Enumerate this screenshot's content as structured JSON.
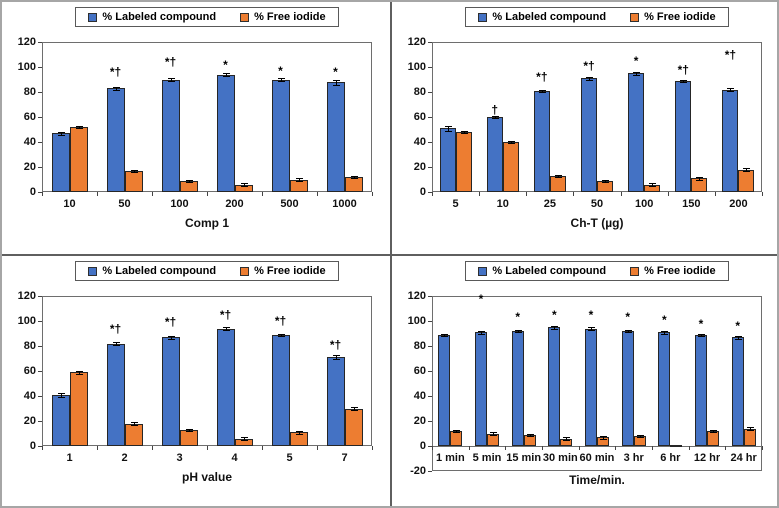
{
  "legend": {
    "items": [
      {
        "label": "% Labeled compound",
        "color": "#4472C4"
      },
      {
        "label": "% Free iodide",
        "color": "#ED7D31"
      }
    ]
  },
  "colors": {
    "labeled_compound": "#4472C4",
    "free_iodide": "#ED7D31",
    "bar_border": "#262626",
    "axis": "#6e6e6e"
  },
  "chart_data": [
    {
      "type": "bar",
      "panel": "top-left",
      "title": "",
      "xlabel": "Comp 1",
      "ylabel": "",
      "ylim": [
        0,
        120
      ],
      "ytick_step": 20,
      "grid": false,
      "legend_position": "top-center",
      "categories": [
        "10",
        "50",
        "100",
        "200",
        "500",
        "1000"
      ],
      "series": [
        {
          "name": "% Labeled compound",
          "color": "#4472C4",
          "values": [
            47,
            83,
            90,
            94,
            90,
            88
          ],
          "errors": [
            1,
            1,
            1,
            1,
            1,
            2
          ]
        },
        {
          "name": "% Free iodide",
          "color": "#ED7D31",
          "values": [
            52,
            17,
            9,
            6,
            10,
            12
          ],
          "errors": [
            1,
            1,
            1,
            1,
            1,
            1
          ]
        }
      ],
      "marks": [
        "",
        "*†",
        "*†",
        "*",
        "*",
        "*"
      ],
      "mark_y": [
        null,
        96,
        104,
        102,
        97,
        96
      ]
    },
    {
      "type": "bar",
      "panel": "top-right",
      "title": "",
      "xlabel": "Ch-T (µg)",
      "ylabel": "",
      "ylim": [
        0,
        120
      ],
      "ytick_step": 20,
      "grid": false,
      "legend_position": "top-center",
      "categories": [
        "5",
        "10",
        "25",
        "50",
        "100",
        "150",
        "200"
      ],
      "series": [
        {
          "name": "% Labeled compound",
          "color": "#4472C4",
          "values": [
            51,
            60,
            81,
            91,
            95,
            89,
            82
          ],
          "errors": [
            2,
            1,
            1,
            1,
            1,
            1,
            1
          ]
        },
        {
          "name": "% Free iodide",
          "color": "#ED7D31",
          "values": [
            48,
            40,
            13,
            9,
            6,
            11,
            18
          ],
          "errors": [
            1,
            1,
            1,
            1,
            1,
            1,
            1
          ]
        }
      ],
      "marks": [
        "",
        "†",
        "*†",
        "*†",
        "*",
        "*†",
        "*†"
      ],
      "mark_y": [
        null,
        66,
        92,
        101,
        105,
        98,
        110
      ]
    },
    {
      "type": "bar",
      "panel": "bottom-left",
      "title": "",
      "xlabel": "pH value",
      "ylabel": "",
      "ylim": [
        0,
        120
      ],
      "ytick_step": 20,
      "grid": false,
      "legend_position": "top-center",
      "categories": [
        "1",
        "2",
        "3",
        "4",
        "5",
        "7"
      ],
      "series": [
        {
          "name": "% Labeled compound",
          "color": "#4472C4",
          "values": [
            41,
            82,
            87,
            94,
            89,
            71
          ],
          "errors": [
            1.5,
            1,
            1,
            1,
            1,
            1.5
          ]
        },
        {
          "name": "% Free iodide",
          "color": "#ED7D31",
          "values": [
            59,
            18,
            13,
            6,
            11,
            30
          ],
          "errors": [
            1,
            1,
            1,
            1,
            1,
            1
          ]
        }
      ],
      "marks": [
        "",
        "*†",
        "*†",
        "*†",
        "*†",
        "*†"
      ],
      "mark_y": [
        null,
        94,
        99,
        105,
        100,
        81
      ]
    },
    {
      "type": "bar",
      "panel": "bottom-right",
      "title": "",
      "xlabel": "Time/min.",
      "ylabel": "",
      "ylim": [
        -20,
        120
      ],
      "ytick_step": 20,
      "grid": false,
      "legend_position": "top-center",
      "categories": [
        "1 min",
        "5 min",
        "15 min",
        "30 min",
        "60 min",
        "3 hr",
        "6 hr",
        "12 hr",
        "24 hr"
      ],
      "series": [
        {
          "name": "% Labeled compound",
          "color": "#4472C4",
          "values": [
            89,
            91,
            92,
            95,
            94,
            92,
            91,
            89,
            87
          ],
          "errors": [
            1,
            1,
            1,
            1,
            1,
            1,
            1,
            1,
            1
          ]
        },
        {
          "name": "% Free iodide",
          "color": "#ED7D31",
          "values": [
            12,
            10,
            9,
            6,
            7,
            8,
            1,
            12,
            14
          ],
          "errors": [
            1,
            1,
            1,
            1,
            1,
            1,
            0,
            1,
            1
          ]
        }
      ],
      "marks": [
        "",
        "*",
        "*",
        "*",
        "*",
        "*",
        "*",
        "*",
        "*"
      ],
      "mark_y": [
        null,
        118,
        103,
        105,
        105,
        103,
        101,
        98,
        96
      ]
    }
  ]
}
